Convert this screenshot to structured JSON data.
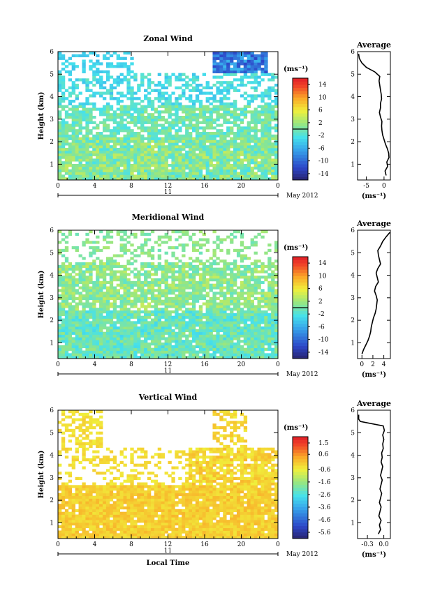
{
  "chart_data": [
    {
      "type": "heatmap",
      "title": "Zonal Wind",
      "ylabel": "Height (km)",
      "xlabel": "",
      "xticks": [
        "0",
        "4",
        "8",
        "12",
        "16",
        "20",
        "0"
      ],
      "yticks": [
        "1",
        "2",
        "3",
        "4",
        "5",
        "6"
      ],
      "xlim": [
        0,
        24
      ],
      "ylim": [
        0.3,
        6
      ],
      "date_day": "11",
      "date_month": "May 2012",
      "colorbar": {
        "unit": "(ms⁻¹)",
        "ticks": [
          "14",
          "10",
          "6",
          "2",
          "-2",
          "-6",
          "-10",
          "-14"
        ],
        "range": [
          -16,
          16
        ],
        "marker": 0
      },
      "profile": {
        "title": "Average",
        "xlabel": "(ms⁻¹)",
        "xticks": [
          "-5",
          "0"
        ],
        "xlim": [
          -7.5,
          1.8
        ],
        "heights": [
          0.5,
          0.7,
          0.9,
          1.1,
          1.3,
          1.5,
          1.7,
          1.9,
          2.1,
          2.3,
          2.5,
          2.7,
          2.9,
          3.1,
          3.3,
          3.5,
          3.7,
          3.9,
          4.1,
          4.3,
          4.5,
          4.7,
          4.9,
          5.1,
          5.3,
          5.5,
          5.7,
          5.9
        ],
        "values": [
          0.6,
          0.3,
          1.0,
          0.8,
          1.4,
          1.3,
          0.9,
          0.4,
          0.0,
          -0.4,
          -0.6,
          -0.7,
          -0.6,
          -1.0,
          -1.3,
          -1.0,
          -1.0,
          -0.7,
          -0.8,
          -1.0,
          -1.2,
          -1.4,
          -1.2,
          -2.6,
          -5.0,
          -6.3,
          -7.0,
          -7.2
        ]
      }
    },
    {
      "type": "heatmap",
      "title": "Meridional Wind",
      "ylabel": "Height (km)",
      "xlabel": "",
      "xticks": [
        "0",
        "4",
        "8",
        "12",
        "16",
        "20",
        "0"
      ],
      "yticks": [
        "1",
        "2",
        "3",
        "4",
        "5",
        "6"
      ],
      "xlim": [
        0,
        24
      ],
      "ylim": [
        0.3,
        6
      ],
      "date_day": "11",
      "date_month": "May 2012",
      "colorbar": {
        "unit": "(ms⁻¹)",
        "ticks": [
          "14",
          "10",
          "6",
          "2",
          "-2",
          "-6",
          "-10",
          "-14"
        ],
        "range": [
          -16,
          16
        ],
        "marker": 0
      },
      "profile": {
        "title": "Average",
        "xlabel": "(ms⁻¹)",
        "xticks": [
          "0",
          "2",
          "4"
        ],
        "xlim": [
          -0.8,
          5.2
        ],
        "heights": [
          0.5,
          0.7,
          0.9,
          1.1,
          1.3,
          1.5,
          1.7,
          1.9,
          2.1,
          2.3,
          2.5,
          2.7,
          2.9,
          3.1,
          3.3,
          3.5,
          3.7,
          3.9,
          4.1,
          4.3,
          4.5,
          4.7,
          4.9,
          5.1,
          5.3,
          5.5,
          5.7,
          5.9
        ],
        "values": [
          0.0,
          0.3,
          0.7,
          1.1,
          1.4,
          1.6,
          1.7,
          1.9,
          2.1,
          2.4,
          2.6,
          2.7,
          2.8,
          2.6,
          2.3,
          2.5,
          3.0,
          2.8,
          2.6,
          2.9,
          3.4,
          3.2,
          3.0,
          2.9,
          3.4,
          3.8,
          4.4,
          5.1
        ]
      }
    },
    {
      "type": "heatmap",
      "title": "Vertical Wind",
      "ylabel": "Height (km)",
      "xlabel": "Local Time",
      "xticks": [
        "0",
        "4",
        "8",
        "12",
        "16",
        "20",
        "0"
      ],
      "yticks": [
        "1",
        "2",
        "3",
        "4",
        "5",
        "6"
      ],
      "xlim": [
        0,
        24
      ],
      "ylim": [
        0.3,
        6
      ],
      "date_day": "11",
      "date_month": "May 2012",
      "colorbar": {
        "unit": "(ms⁻¹)",
        "ticks": [
          "1.5",
          "0.6",
          "-0.6",
          "-1.6",
          "-2.6",
          "-3.6",
          "-4.6",
          "-5.6"
        ],
        "range": [
          -6.1,
          2.0
        ],
        "marker": null
      },
      "profile": {
        "title": "Average",
        "xlabel": "(ms⁻¹)",
        "xticks": [
          "-0.3",
          "0.0"
        ],
        "xlim": [
          -0.48,
          0.12
        ],
        "heights": [
          0.5,
          0.7,
          0.9,
          1.1,
          1.3,
          1.5,
          1.7,
          1.9,
          2.1,
          2.3,
          2.5,
          2.7,
          2.9,
          3.1,
          3.3,
          3.5,
          3.7,
          3.9,
          4.1,
          4.3,
          4.5,
          4.7,
          4.9,
          5.1,
          5.3,
          5.5,
          5.6,
          5.7,
          5.8
        ],
        "values": [
          -0.1,
          -0.06,
          -0.08,
          -0.05,
          -0.09,
          -0.07,
          -0.05,
          -0.08,
          -0.06,
          -0.04,
          -0.07,
          -0.05,
          -0.03,
          -0.06,
          -0.04,
          -0.02,
          -0.05,
          -0.03,
          -0.04,
          -0.01,
          -0.02,
          0.0,
          -0.02,
          0.01,
          -0.01,
          -0.43,
          -0.46,
          -0.46,
          -0.46
        ]
      }
    }
  ]
}
